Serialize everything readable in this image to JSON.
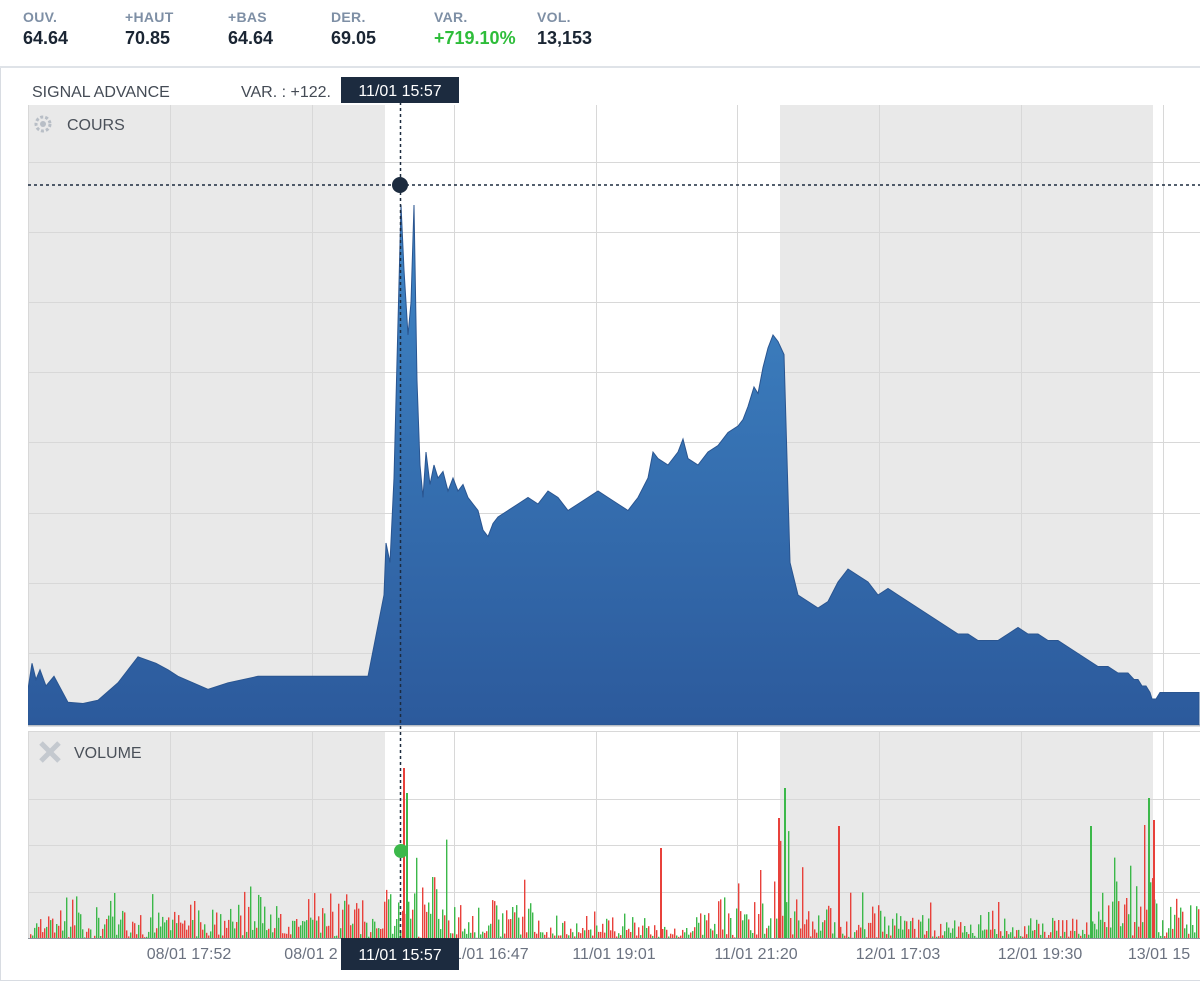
{
  "header": {
    "stats": [
      {
        "label": "OUV.",
        "value": "64.64"
      },
      {
        "label": "+HAUT",
        "value": "70.85"
      },
      {
        "label": "+BAS",
        "value": "64.64"
      },
      {
        "label": "DER.",
        "value": "69.05"
      },
      {
        "label": "VAR.",
        "value": "+719.10%"
      },
      {
        "label": "VOL.",
        "value": "13,153"
      }
    ]
  },
  "chart": {
    "title": "SIGNAL ADVANCE",
    "var_text": "VAR. : +122.",
    "price_panel_label": "COURS",
    "volume_panel_label": "VOLUME",
    "crosshair_label": "11/01 15:57",
    "colors": {
      "price_fill": "#2e5f9e",
      "vol_up": "#3cb84a",
      "vol_down": "#e8413b",
      "session_shade": "#e9e9e9",
      "crosshair": "#1c2b3f"
    }
  },
  "chart_data": {
    "type": "area",
    "title": "SIGNAL ADVANCE",
    "x_tick_labels": [
      "08/01 17:52",
      "08/01 2",
      "11/01 16:47",
      "11/01 19:01",
      "11/01 21:20",
      "12/01 17:03",
      "12/01 19:30",
      "13/01 15"
    ],
    "series": [
      {
        "name": "COURS",
        "x_index": [
          0,
          4,
          8,
          12,
          18,
          26,
          40,
          55,
          70,
          90,
          110,
          128,
          140,
          150,
          165,
          180,
          200,
          230,
          260,
          300,
          340,
          356,
          358,
          362,
          366,
          370,
          373,
          376,
          380,
          383,
          386,
          389,
          392,
          395,
          398,
          402,
          406,
          410,
          415,
          420,
          425,
          430,
          435,
          440,
          445,
          450,
          455,
          460,
          465,
          470,
          480,
          490,
          500,
          510,
          520,
          530,
          540,
          550,
          560,
          570,
          580,
          590,
          600,
          610,
          620,
          625,
          630,
          640,
          650,
          655,
          660,
          670,
          680,
          690,
          700,
          710,
          715,
          720,
          726,
          730,
          735,
          740,
          745,
          750,
          756,
          762,
          770,
          780,
          790,
          800,
          810,
          820,
          830,
          840,
          850,
          860,
          870,
          880,
          890,
          900,
          910,
          920,
          930,
          940,
          950,
          960,
          970,
          980,
          990,
          1000,
          1010,
          1020,
          1030,
          1040,
          1050,
          1060,
          1070,
          1080,
          1090,
          1100,
          1106,
          1110,
          1114,
          1118,
          1122,
          1124,
          1128,
          1132,
          1140,
          1150,
          1160,
          1171
        ],
        "values": [
          5.5,
          9.5,
          7,
          8.5,
          6,
          7.5,
          3.5,
          3.3,
          3.8,
          6.5,
          10.5,
          9.5,
          8.5,
          7.5,
          6.5,
          5.5,
          6.5,
          7.5,
          7.5,
          7.5,
          7.5,
          20,
          28,
          25,
          38,
          62,
          80,
          70,
          60,
          65,
          80,
          53,
          40,
          35,
          42,
          37,
          40,
          38,
          39,
          36,
          38,
          36,
          37,
          35,
          34,
          33,
          30,
          29,
          31,
          32,
          33,
          34,
          35,
          34,
          36,
          35,
          33,
          34,
          35,
          36,
          35,
          34,
          33,
          35,
          38,
          42,
          41,
          40,
          42,
          44,
          41,
          40,
          42,
          43,
          45,
          46,
          47,
          49,
          52,
          51,
          55,
          58,
          60,
          59,
          57,
          25,
          20,
          19,
          18,
          19,
          22,
          24,
          23,
          22,
          20,
          21,
          20,
          19,
          18,
          17,
          16,
          15,
          14,
          14,
          13,
          13,
          13,
          14,
          15,
          14,
          14,
          13,
          13,
          12,
          11,
          10,
          9,
          9,
          8,
          8,
          7,
          7,
          6,
          6,
          5,
          4,
          4,
          5,
          5,
          5,
          5,
          5
        ]
      }
    ],
    "crosshair": {
      "x_label": "11/01 15:57"
    },
    "annotations": [
      "VAR. : +122."
    ]
  }
}
